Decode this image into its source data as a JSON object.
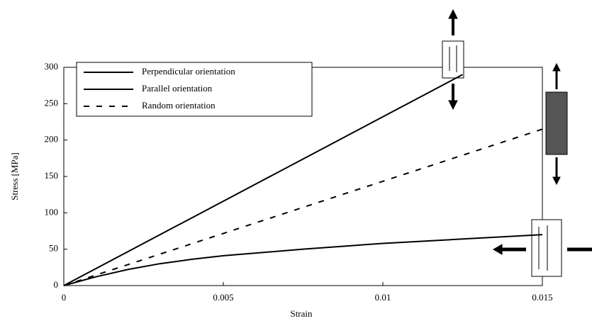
{
  "chart_data": {
    "type": "line",
    "xlabel": "Strain",
    "ylabel": "Stress [MPa]",
    "xlim": [
      0,
      0.015
    ],
    "xticks": [
      0,
      0.005,
      0.01,
      0.015
    ],
    "ylim": [
      0,
      300
    ],
    "yticks": [
      0,
      50,
      100,
      150,
      200,
      250,
      300
    ],
    "legend": "top-left",
    "series": [
      {
        "name": "Perpendicular orientation",
        "color": "#000000",
        "dashed": false,
        "x": [
          0,
          0.0125
        ],
        "values": [
          0,
          290
        ]
      },
      {
        "name": "Parallel orientation",
        "color": "#000000",
        "dashed": false,
        "x": [
          0,
          0.001,
          0.002,
          0.003,
          0.004,
          0.005,
          0.0075,
          0.01,
          0.0125,
          0.015
        ],
        "values": [
          0,
          12,
          22,
          30,
          36,
          41,
          50,
          58,
          64,
          70
        ]
      },
      {
        "name": "Random orientation",
        "color": "#000000",
        "dashed": true,
        "x": [
          0,
          0.015
        ],
        "values": [
          0,
          215
        ]
      }
    ]
  }
}
